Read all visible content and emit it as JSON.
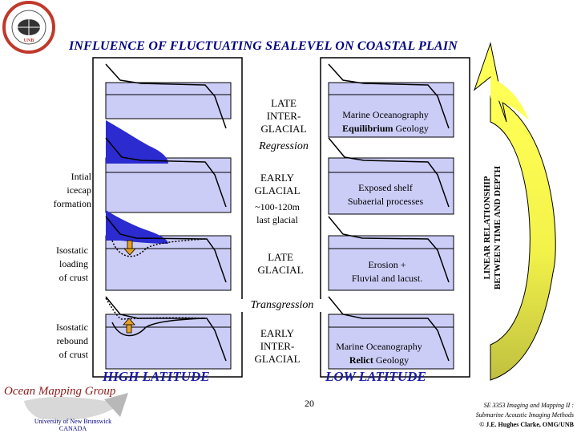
{
  "logo": {
    "ring_text": "SURVEY AND GEOMATICS ENGINEERING",
    "abbr": "UNB"
  },
  "title": "INFLUENCE OF FLUCTUATING SEALEVEL ON COASTAL PLAIN",
  "left_labels": [
    {
      "lines": [
        "Intial",
        "icecap",
        "formation"
      ]
    },
    {
      "lines": [
        "Isostatic",
        "loading",
        "of crust"
      ]
    },
    {
      "lines": [
        "Isostatic",
        "rebound",
        "of crust"
      ]
    }
  ],
  "stages": [
    {
      "lines": [
        "LATE",
        "INTER-",
        "GLACIAL"
      ]
    },
    {
      "lines": [
        "EARLY",
        "GLACIAL"
      ],
      "extra": [
        "~100-120m",
        "last glacial"
      ]
    },
    {
      "lines": [
        "LATE",
        "GLACIAL"
      ]
    },
    {
      "lines": [
        "EARLY",
        "INTER-",
        "GLACIAL"
      ]
    }
  ],
  "transitions": {
    "regression": "Regression",
    "transgression": "Transgression"
  },
  "low_boxes": [
    {
      "line1": "Marine Oceanography",
      "line2_bold": "Equilibrium",
      "line2_rest": " Geology"
    },
    {
      "line1": "Exposed shelf",
      "line2_bold": "",
      "line2_rest": "Subaerial processes"
    },
    {
      "line1": "Erosion +",
      "line2_bold": "",
      "line2_rest": "Fluvial and lacust."
    },
    {
      "line1": "Marine Oceanography",
      "line2_bold": "Relict",
      "line2_rest": " Geology"
    }
  ],
  "column_labels": {
    "high": "HIGH LATITUDE",
    "low": "LOW LATITUDE"
  },
  "vertical_text": [
    "LINEAR RELATIONSHIP",
    "BETWEEN TIME AND DEPTH"
  ],
  "footer": {
    "group": "Ocean Mapping Group",
    "university": [
      "University of New Brunswick",
      "CANADA"
    ],
    "page_number": "20",
    "course": [
      "SE 3353 Imaging and Mapping II :",
      "Submarine Acoustic Imaging Methods"
    ],
    "copyright": "© J.E. Hughes Clarke, OMG/UNB"
  },
  "colors": {
    "water": "#cccdf7",
    "ice": "#2b2bd0",
    "title": "#000080",
    "arrow_yellow": "#ffff55",
    "arrow_olive": "#c8c84a",
    "latitude_label": "#1a1aa8",
    "group_name": "#8b1a1a"
  }
}
